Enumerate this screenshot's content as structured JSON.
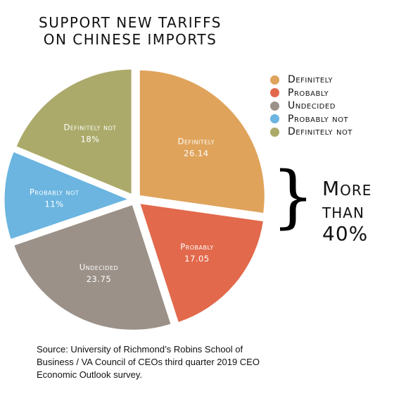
{
  "title_lines": [
    "Support new tariffs",
    "on Chinese imports"
  ],
  "chart_data": {
    "type": "pie",
    "title": "Support new tariffs on Chinese imports",
    "slices": [
      {
        "name": "Definitely",
        "label": "Definitely",
        "value_label": "26.14",
        "value": 26.14,
        "color": "#dfa35b"
      },
      {
        "name": "Probably",
        "label": "Probably",
        "value_label": "17.05",
        "value": 17.05,
        "color": "#e2694c"
      },
      {
        "name": "Undecided",
        "label": "Undecided",
        "value_label": "23.75",
        "value": 23.75,
        "color": "#9b9188"
      },
      {
        "name": "Probably not",
        "label": "Probably not",
        "value_label": "11%",
        "value": 11,
        "color": "#6bb5e0"
      },
      {
        "name": "Definitely not",
        "label": "Definitely not",
        "value_label": "18%",
        "value": 18,
        "color": "#abaa6a"
      }
    ],
    "legend": [
      "Definitely",
      "Probably",
      "Undecided",
      "Probably not",
      "Definitely not"
    ],
    "legend_placement": "right",
    "annotation": "More than 40%"
  },
  "annotation_lines": [
    "More",
    "than",
    "40%"
  ],
  "source": "Source: University of Richmond’s Robins School of Business / VA Council of CEOs third quarter 2019 CEO Economic Outlook survey."
}
